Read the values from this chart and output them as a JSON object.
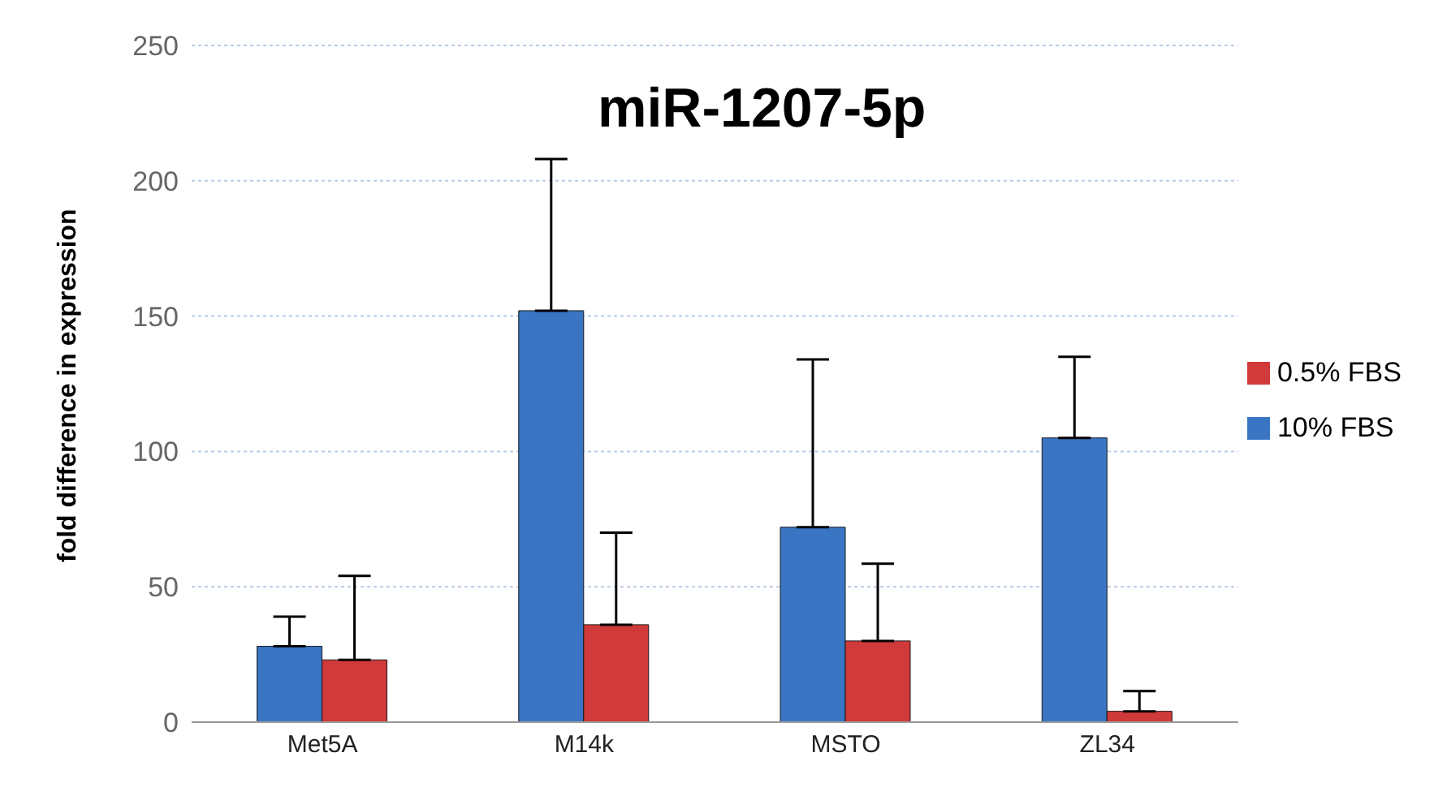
{
  "chart_data": {
    "type": "bar",
    "title": "miR-1207-5p",
    "ylabel": "fold difference in expression",
    "categories": [
      "Met5A",
      "M14k",
      "MSTO",
      "ZL34"
    ],
    "series": [
      {
        "name": "10% FBS",
        "color": "#3a75c4",
        "values": [
          28,
          152,
          72,
          105
        ],
        "errors": [
          [
            28,
            39
          ],
          [
            152,
            208
          ],
          [
            72,
            134
          ],
          [
            105,
            135
          ]
        ]
      },
      {
        "name": "0.5% FBS",
        "color": "#d03a3a",
        "values": [
          23,
          36,
          30,
          4
        ],
        "errors": [
          [
            23,
            54
          ],
          [
            36,
            70
          ],
          [
            30,
            58.5
          ],
          [
            4,
            11.5
          ]
        ]
      }
    ],
    "ylim": [
      0,
      250
    ],
    "yticks": [
      0,
      50,
      100,
      150,
      200,
      250
    ],
    "grid": "y",
    "legend": "right"
  }
}
